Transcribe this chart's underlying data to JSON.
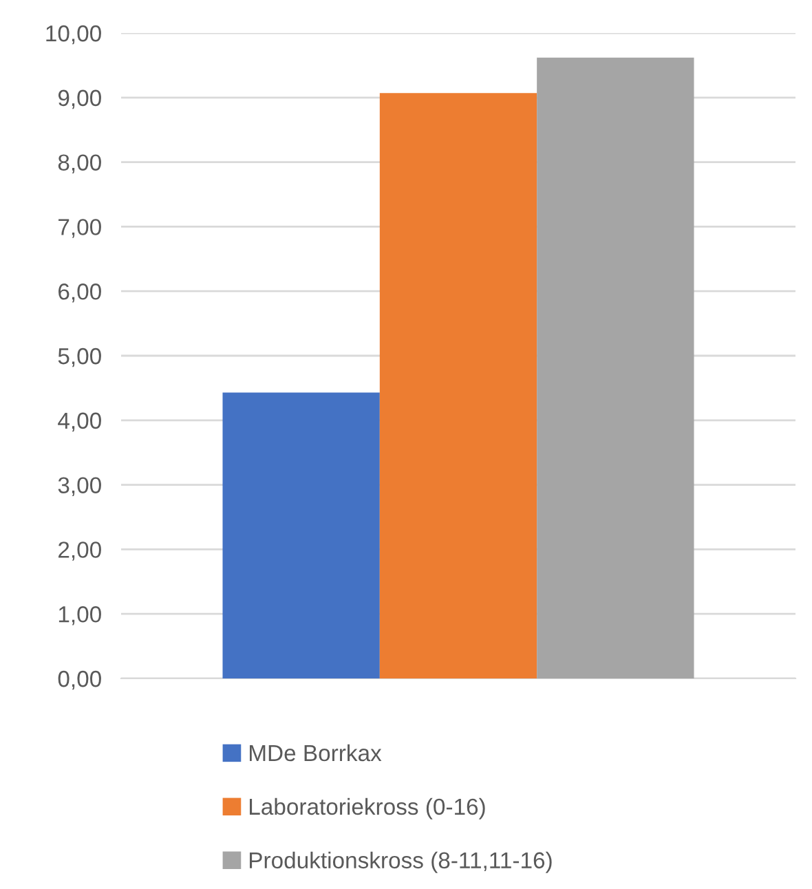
{
  "chart_data": {
    "type": "bar",
    "categories": [
      null
    ],
    "series": [
      {
        "name": "MDe Borrkax",
        "color": "#4472c4",
        "values": [
          4.43
        ]
      },
      {
        "name": "Laboratoriekross (0-16)",
        "color": "#ed7d31",
        "values": [
          9.07
        ]
      },
      {
        "name": "Produktionskross (8-11,11-16)",
        "color": "#a5a5a5",
        "values": [
          9.62
        ]
      }
    ],
    "ylim": [
      0,
      10
    ],
    "yticks": [
      {
        "value": 0,
        "label": "0,00"
      },
      {
        "value": 1,
        "label": "1,00"
      },
      {
        "value": 2,
        "label": "2,00"
      },
      {
        "value": 3,
        "label": "3,00"
      },
      {
        "value": 4,
        "label": "4,00"
      },
      {
        "value": 5,
        "label": "5,00"
      },
      {
        "value": 6,
        "label": "6,00"
      },
      {
        "value": 7,
        "label": "7,00"
      },
      {
        "value": 8,
        "label": "8,00"
      },
      {
        "value": 9,
        "label": "9,00"
      },
      {
        "value": 10,
        "label": "10,00"
      }
    ],
    "grid": "y",
    "legend": "bottom"
  }
}
